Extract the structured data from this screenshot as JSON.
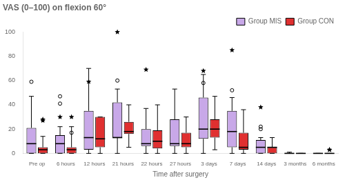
{
  "chart_data": {
    "type": "boxplot",
    "title": "VAS (0–100) on flexion 60°",
    "xlabel": "Time after surgery",
    "categories": [
      "Pre op",
      "6 hours",
      "12 hours",
      "21 hours",
      "22 hours",
      "27 hours",
      "3 days",
      "7 days",
      "14 days",
      "3 months",
      "6 months"
    ],
    "series": [
      {
        "name": "Group MIS",
        "color": "#C8A8E8",
        "q1": [
          0,
          0,
          3,
          13,
          6,
          6,
          12,
          5,
          0,
          0,
          0
        ],
        "median": [
          8,
          8,
          13,
          13,
          8,
          8,
          20,
          18,
          5,
          0,
          0
        ],
        "q3": [
          21,
          15,
          35,
          42,
          20,
          28,
          46,
          35,
          11,
          0,
          0
        ],
        "whislo": [
          0,
          0,
          0,
          0,
          0,
          0,
          0,
          0,
          0,
          0,
          0
        ],
        "whishi": [
          47,
          22,
          70,
          53,
          37,
          53,
          65,
          46,
          13,
          1,
          0
        ],
        "outliers": [
          [
            59
          ],
          [
            47,
            41
          ],
          [],
          [
            60
          ],
          [],
          [],
          [
            58
          ],
          [
            52
          ],
          [
            22,
            20
          ],
          [],
          []
        ],
        "extremes": [
          [],
          [
            30
          ],
          [
            59
          ],
          [
            100
          ],
          [
            69
          ],
          [],
          [
            68
          ],
          [
            85
          ],
          [
            38
          ],
          [],
          []
        ]
      },
      {
        "name": "Group CON",
        "color": "#E03030",
        "q1": [
          0,
          0,
          5,
          16,
          4,
          5,
          13,
          3,
          0,
          0,
          0
        ],
        "median": [
          3,
          3,
          12,
          18,
          10,
          8,
          20,
          5,
          5,
          0,
          0
        ],
        "q3": [
          5,
          5,
          30,
          26,
          19,
          17,
          28,
          17,
          5,
          0,
          0
        ],
        "whislo": [
          0,
          0,
          0,
          5,
          0,
          0,
          3,
          0,
          0,
          0,
          0
        ],
        "whishi": [
          14,
          22,
          30,
          40,
          40,
          30,
          47,
          36,
          13,
          0,
          0
        ],
        "outliers": [
          [],
          [
            17
          ],
          [],
          [],
          [],
          [],
          [],
          [],
          [],
          [],
          []
        ],
        "extremes": [
          [
            28,
            27
          ],
          [
            30
          ],
          [],
          [],
          [],
          [],
          [],
          [],
          [],
          [],
          [
            3,
            3
          ]
        ]
      }
    ],
    "ylim": [
      0,
      100
    ],
    "yticks": [
      0,
      20,
      40,
      60,
      80,
      100
    ],
    "grid": false,
    "legend": "upper right"
  }
}
